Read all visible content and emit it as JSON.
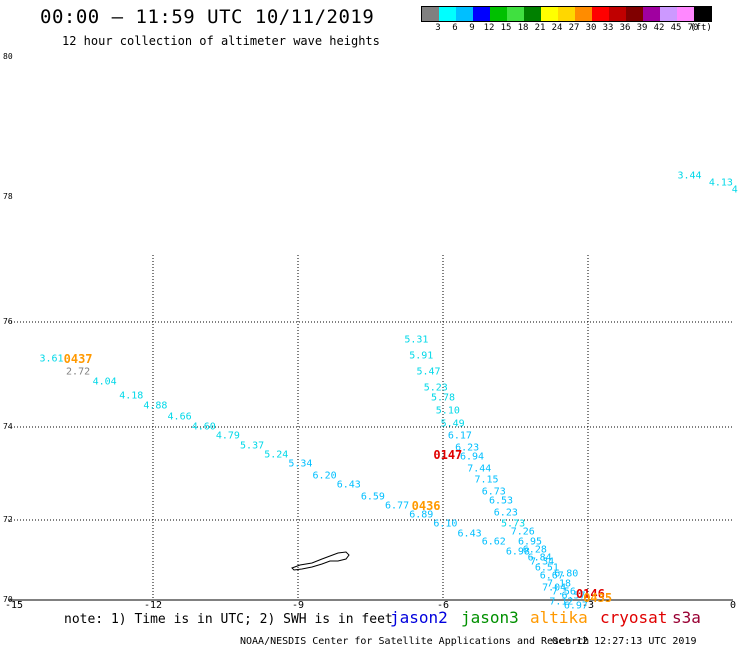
{
  "title": "00:00 – 11:59 UTC 10/11/2019",
  "subtitle": "12 hour collection of altimeter wave heights",
  "scale": {
    "colors": [
      "#808080",
      "#00ffff",
      "#00bfff",
      "#0000ff",
      "#00c000",
      "#40e040",
      "#008000",
      "#ffff00",
      "#ffd700",
      "#ff8c00",
      "#ff0000",
      "#c00000",
      "#800000",
      "#a000a0",
      "#cc99ff",
      "#ff88ff",
      "#000000"
    ],
    "labels": [
      "3",
      "6",
      "9",
      "12",
      "15",
      "18",
      "21",
      "24",
      "27",
      "30",
      "33",
      "36",
      "39",
      "42",
      "45",
      "70",
      "(ft)"
    ]
  },
  "map": {
    "lon_range": [
      -15,
      0
    ],
    "lat_ticks": [
      "80",
      "78",
      "76",
      "74",
      "72",
      "70"
    ],
    "lon_ticks": [
      "-15",
      "-12",
      "-9",
      "-6",
      "-3",
      "0"
    ]
  },
  "observations": [
    {
      "lon": -0.9,
      "lat": 78.3,
      "v": "3.44",
      "color": "#00d8e8"
    },
    {
      "lon": -0.25,
      "lat": 78.2,
      "v": "4.13",
      "color": "#00d8e8"
    },
    {
      "lon": 0.1,
      "lat": 78.1,
      "v": "4.",
      "color": "#00d8e8"
    },
    {
      "lon": -14.1,
      "lat": 75.3,
      "v": "3.61",
      "color": "#00d8e8"
    },
    {
      "lon": -13.55,
      "lat": 75.05,
      "v": "2.72",
      "color": "#808080"
    },
    {
      "lon": -13.0,
      "lat": 74.85,
      "v": "4.04",
      "color": "#00d8e8"
    },
    {
      "lon": -12.45,
      "lat": 74.6,
      "v": "4.18",
      "color": "#00d8e8"
    },
    {
      "lon": -11.95,
      "lat": 74.4,
      "v": "4.88",
      "color": "#00d8e8"
    },
    {
      "lon": -11.45,
      "lat": 74.2,
      "v": "4.66",
      "color": "#00d8e8"
    },
    {
      "lon": -10.95,
      "lat": 74.0,
      "v": "4.60",
      "color": "#00d8e8"
    },
    {
      "lon": -10.45,
      "lat": 73.8,
      "v": "4.79",
      "color": "#00d8e8"
    },
    {
      "lon": -9.95,
      "lat": 73.6,
      "v": "5.37",
      "color": "#00d8e8"
    },
    {
      "lon": -9.45,
      "lat": 73.4,
      "v": "5.24",
      "color": "#00d8e8"
    },
    {
      "lon": -8.95,
      "lat": 73.2,
      "v": "5.34",
      "color": "#00bfff"
    },
    {
      "lon": -8.45,
      "lat": 72.95,
      "v": "6.20",
      "color": "#00bfff"
    },
    {
      "lon": -7.95,
      "lat": 72.75,
      "v": "6.43",
      "color": "#00bfff"
    },
    {
      "lon": -7.45,
      "lat": 72.5,
      "v": "6.59",
      "color": "#00bfff"
    },
    {
      "lon": -6.95,
      "lat": 72.3,
      "v": "6.77",
      "color": "#00bfff"
    },
    {
      "lon": -6.45,
      "lat": 72.1,
      "v": "6.89",
      "color": "#00bfff"
    },
    {
      "lon": -5.95,
      "lat": 71.9,
      "v": "6.10",
      "color": "#00bfff"
    },
    {
      "lon": -5.45,
      "lat": 71.65,
      "v": "6.43",
      "color": "#00bfff"
    },
    {
      "lon": -4.95,
      "lat": 71.45,
      "v": "6.62",
      "color": "#00bfff"
    },
    {
      "lon": -4.45,
      "lat": 71.2,
      "v": "6.98",
      "color": "#00bfff"
    },
    {
      "lon": -3.95,
      "lat": 70.95,
      "v": "7.34",
      "color": "#00bfff"
    },
    {
      "lon": -3.45,
      "lat": 70.65,
      "v": "6.80",
      "color": "#00bfff"
    },
    {
      "lon": -6.55,
      "lat": 75.65,
      "v": "5.31",
      "color": "#00d8e8"
    },
    {
      "lon": -6.45,
      "lat": 75.35,
      "v": "5.91",
      "color": "#00d8e8"
    },
    {
      "lon": -6.3,
      "lat": 75.05,
      "v": "5.47",
      "color": "#00d8e8"
    },
    {
      "lon": -6.15,
      "lat": 74.75,
      "v": "5.23",
      "color": "#00d8e8"
    },
    {
      "lon": -6.0,
      "lat": 74.55,
      "v": "5.78",
      "color": "#00d8e8"
    },
    {
      "lon": -5.9,
      "lat": 74.3,
      "v": "5.10",
      "color": "#00d8e8"
    },
    {
      "lon": -5.8,
      "lat": 74.05,
      "v": "5.49",
      "color": "#00d8e8"
    },
    {
      "lon": -5.65,
      "lat": 73.8,
      "v": "6.17",
      "color": "#00bfff"
    },
    {
      "lon": -5.5,
      "lat": 73.55,
      "v": "6.23",
      "color": "#00bfff"
    },
    {
      "lon": -5.4,
      "lat": 73.35,
      "v": "6.94",
      "color": "#00bfff"
    },
    {
      "lon": -5.25,
      "lat": 73.1,
      "v": "7.44",
      "color": "#00bfff"
    },
    {
      "lon": -5.1,
      "lat": 72.85,
      "v": "7.15",
      "color": "#00bfff"
    },
    {
      "lon": -4.95,
      "lat": 72.6,
      "v": "6.73",
      "color": "#00bfff"
    },
    {
      "lon": -4.8,
      "lat": 72.4,
      "v": "6.53",
      "color": "#00bfff"
    },
    {
      "lon": -4.7,
      "lat": 72.15,
      "v": "6.23",
      "color": "#00bfff"
    },
    {
      "lon": -4.55,
      "lat": 71.9,
      "v": "5.73",
      "color": "#00d8e8"
    },
    {
      "lon": -4.35,
      "lat": 71.7,
      "v": "7.26",
      "color": "#00bfff"
    },
    {
      "lon": -4.2,
      "lat": 71.45,
      "v": "6.95",
      "color": "#00bfff"
    },
    {
      "lon": -4.1,
      "lat": 71.25,
      "v": "6.28",
      "color": "#00bfff"
    },
    {
      "lon": -4.0,
      "lat": 71.05,
      "v": "6.84",
      "color": "#00bfff"
    },
    {
      "lon": -3.85,
      "lat": 70.8,
      "v": "6.51",
      "color": "#00bfff"
    },
    {
      "lon": -3.75,
      "lat": 70.6,
      "v": "6.67",
      "color": "#00bfff"
    },
    {
      "lon": -3.6,
      "lat": 70.4,
      "v": "7.18",
      "color": "#00bfff"
    },
    {
      "lon": -3.7,
      "lat": 70.3,
      "v": "7.04",
      "color": "#00bfff"
    },
    {
      "lon": -3.5,
      "lat": 70.2,
      "v": "7.56",
      "color": "#00bfff"
    },
    {
      "lon": -3.3,
      "lat": 70.1,
      "v": "6.57",
      "color": "#00bfff"
    },
    {
      "lon": -3.55,
      "lat": 69.95,
      "v": "7.12",
      "color": "#00bfff"
    },
    {
      "lon": -3.25,
      "lat": 69.85,
      "v": "6.97",
      "color": "#00bfff"
    }
  ],
  "passes": [
    {
      "lon": -13.55,
      "lat": 75.3,
      "t": "0437",
      "color": "#ff9900"
    },
    {
      "lon": -5.9,
      "lat": 73.4,
      "t": "0147",
      "color": "#e00000"
    },
    {
      "lon": -6.35,
      "lat": 72.3,
      "t": "0436",
      "color": "#ff9900"
    },
    {
      "lon": -2.95,
      "lat": 70.15,
      "t": "0146",
      "color": "#e00000"
    },
    {
      "lon": -2.8,
      "lat": 70.05,
      "t": "0435",
      "color": "#ff9900"
    }
  ],
  "note": "note: 1) Time is in UTC; 2) SWH is in feet",
  "satellites": [
    {
      "name": "jason2",
      "color": "#0000dd"
    },
    {
      "name": "jason3",
      "color": "#009000"
    },
    {
      "name": "altika",
      "color": "#ff9900"
    },
    {
      "name": "cryosat",
      "color": "#e00000"
    },
    {
      "name": "s3a",
      "color": "#990033"
    }
  ],
  "credit": "NOAA/NESDIS Center for Satellite Applications and Research",
  "timestamp": "Oct 12 12:27:13 UTC 2019"
}
